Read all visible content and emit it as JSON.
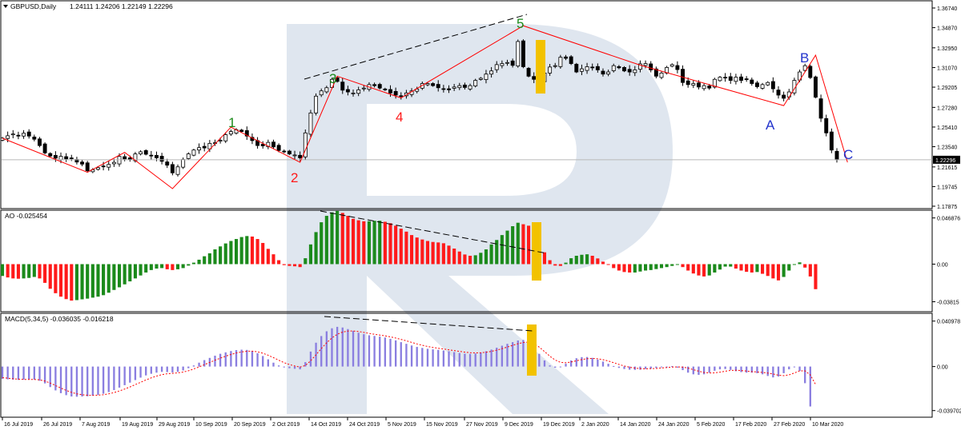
{
  "header": {
    "symbol": "GBPUSD,Daily",
    "ohlc": "1.24111 1.24206 1.22149 1.22296"
  },
  "indicators": {
    "ao_label": "AO -0.025454",
    "macd_label": "MACD(5,34,5) -0.036035 -0.016218"
  },
  "colors": {
    "bull_bar": "#ffffff",
    "bear_bar": "#000000",
    "wave_line": "#ff0000",
    "ao_up": "#1b8a1b",
    "ao_down": "#ff1a1a",
    "macd_hist": "#8a7ee0",
    "macd_signal": "#ff0000",
    "highlight": "#f2c200",
    "watermark": "#dfe6ef",
    "impulse_label": "#1a8a1a",
    "wave4_label": "#ff1a1a",
    "corrective_label": "#2233cc"
  },
  "chart_data": [
    {
      "type": "candlestick",
      "name": "price",
      "y_ticks": [
        "1.36740",
        "1.34870",
        "1.32950",
        "1.31070",
        "1.29205",
        "1.27280",
        "1.25410",
        "1.23540",
        "1.21615",
        "1.19745",
        "1.17875"
      ],
      "y_range": [
        1.17875,
        1.3674
      ],
      "current_price": "1.22296",
      "x_labels": [
        "16 Jul 2019",
        "26 Jul 2019",
        "7 Aug 2019",
        "19 Aug 2019",
        "29 Aug 2019",
        "10 Sep 2019",
        "20 Sep 2019",
        "2 Oct 2019",
        "14 Oct 2019",
        "24 Oct 2019",
        "5 Nov 2019",
        "15 Nov 2019",
        "27 Nov 2019",
        "9 Dec 2019",
        "19 Dec 2019",
        "2 Jan 2020",
        "14 Jan 2020",
        "24 Jan 2020",
        "5 Feb 2020",
        "17 Feb 2020",
        "27 Feb 2020",
        "10 Mar 2020"
      ],
      "closes": [
        1.2435,
        1.2458,
        1.2475,
        1.2455,
        1.2482,
        1.2455,
        1.2425,
        1.2365,
        1.2295,
        1.2265,
        1.2245,
        1.2262,
        1.2238,
        1.2244,
        1.2208,
        1.2188,
        1.2125,
        1.2135,
        1.2155,
        1.2165,
        1.2185,
        1.2205,
        1.2262,
        1.2238,
        1.2232,
        1.2285,
        1.2305,
        1.2282,
        1.2268,
        1.2248,
        1.2215,
        1.2178,
        1.2105,
        1.2162,
        1.2232,
        1.2285,
        1.2322,
        1.2345,
        1.2342,
        1.2385,
        1.2392,
        1.2415,
        1.2468,
        1.2498,
        1.2515,
        1.2498,
        1.2455,
        1.2412,
        1.2365,
        1.2362,
        1.2395,
        1.2352,
        1.2318,
        1.2306,
        1.2285,
        1.2275,
        1.2248,
        1.2485,
        1.2675,
        1.2835,
        1.2885,
        1.2915,
        1.2995,
        1.2975,
        1.2892,
        1.2875,
        1.2865,
        1.2895,
        1.2912,
        1.2945,
        1.2935,
        1.2912,
        1.2895,
        1.2865,
        1.2845,
        1.2832,
        1.2865,
        1.2885,
        1.2902,
        1.2955,
        1.2955,
        1.2935,
        1.2915,
        1.2902,
        1.2895,
        1.2922,
        1.2935,
        1.2918,
        1.2935,
        1.2985,
        1.3005,
        1.3045,
        1.3075,
        1.3135,
        1.3145,
        1.3155,
        1.3128,
        1.3355,
        1.3115,
        1.3025,
        1.2995,
        1.2985,
        1.3055,
        1.3112,
        1.3125,
        1.3205,
        1.3195,
        1.3145,
        1.3065,
        1.3095,
        1.3115,
        1.3108,
        1.3085,
        1.3045,
        1.3065,
        1.3125,
        1.3105,
        1.3075,
        1.3065,
        1.3085,
        1.3142,
        1.3145,
        1.3085,
        1.3025,
        1.3055,
        1.3108,
        1.3135,
        1.3088,
        1.2965,
        1.2945,
        1.2955,
        1.2922,
        1.2935,
        1.2912,
        1.2995,
        1.3015,
        1.3008,
        1.2985,
        1.3015,
        1.2985,
        1.2995,
        1.2955,
        1.2925,
        1.2945,
        1.2965,
        1.2905,
        1.2845,
        1.2815,
        1.2875,
        1.2985,
        1.3065,
        1.3125,
        1.3012,
        1.2825,
        1.2625,
        1.2485,
        1.2322,
        1.223
      ]
    },
    {
      "type": "bar",
      "name": "AO",
      "y_ticks": [
        "0.046876",
        "0.00",
        "-0.03815"
      ],
      "y_range": [
        -0.04503,
        0.05067
      ],
      "values": [
        -0.012,
        -0.0135,
        -0.0145,
        -0.0148,
        -0.0145,
        -0.014,
        -0.013,
        -0.0145,
        -0.019,
        -0.025,
        -0.0295,
        -0.033,
        -0.0355,
        -0.037,
        -0.0365,
        -0.0357,
        -0.035,
        -0.034,
        -0.033,
        -0.0315,
        -0.029,
        -0.0262,
        -0.0235,
        -0.0205,
        -0.0175,
        -0.0145,
        -0.0115,
        -0.0085,
        -0.006,
        -0.0045,
        -0.004,
        -0.0052,
        -0.006,
        -0.0052,
        -0.004,
        -0.0015,
        0.0015,
        0.0045,
        0.008,
        0.011,
        0.015,
        0.018,
        0.021,
        0.0235,
        0.0255,
        0.0275,
        0.0285,
        0.028,
        0.0255,
        0.0215,
        0.0155,
        0.01,
        0.004,
        -0.001,
        -0.0018,
        -0.0022,
        -0.003,
        0.006,
        0.02,
        0.0325,
        0.0425,
        0.049,
        0.0525,
        0.054,
        0.052,
        0.049,
        0.046,
        0.0445,
        0.0435,
        0.0435,
        0.044,
        0.044,
        0.043,
        0.0415,
        0.039,
        0.036,
        0.033,
        0.0295,
        0.027,
        0.025,
        0.0235,
        0.0225,
        0.022,
        0.0212,
        0.0188,
        0.0158,
        0.0128,
        0.0098,
        0.0085,
        0.009,
        0.0115,
        0.015,
        0.02,
        0.0245,
        0.0295,
        0.034,
        0.0385,
        0.042,
        0.0405,
        0.039,
        0.034,
        0.022,
        0.012,
        0.004,
        -0.0015,
        -0.0018,
        0.0015,
        0.006,
        0.0085,
        0.0095,
        0.01,
        0.0085,
        0.0058,
        0.0025,
        -0.0005,
        -0.004,
        -0.0065,
        -0.008,
        -0.0085,
        -0.0085,
        -0.0075,
        -0.0065,
        -0.006,
        -0.005,
        -0.004,
        -0.003,
        -0.0018,
        -0.0008,
        -0.003,
        -0.0065,
        -0.0095,
        -0.0115,
        -0.0125,
        -0.0115,
        -0.0085,
        -0.0055,
        -0.0025,
        -0.0025,
        -0.0045,
        -0.0065,
        -0.0078,
        -0.0085,
        -0.008,
        -0.0098,
        -0.012,
        -0.0145,
        -0.0165,
        -0.013,
        -0.0065,
        -0.0008,
        0.0018,
        -0.0035,
        -0.0125,
        -0.0254
      ]
    },
    {
      "type": "bar+line",
      "name": "MACD",
      "y_ticks": [
        "0.040978",
        "0.00",
        "-0.039702"
      ],
      "y_range": [
        -0.0428,
        0.0444
      ],
      "hist": [
        -0.011,
        -0.0115,
        -0.0118,
        -0.012,
        -0.0118,
        -0.0116,
        -0.0117,
        -0.0128,
        -0.0152,
        -0.0185,
        -0.0215,
        -0.024,
        -0.0258,
        -0.027,
        -0.0272,
        -0.027,
        -0.0268,
        -0.0262,
        -0.0255,
        -0.0245,
        -0.023,
        -0.0212,
        -0.019,
        -0.0168,
        -0.0145,
        -0.0122,
        -0.01,
        -0.008,
        -0.0065,
        -0.0055,
        -0.0048,
        -0.005,
        -0.0053,
        -0.0048,
        -0.0035,
        -0.0015,
        0.001,
        0.0035,
        0.0058,
        0.0078,
        0.0098,
        0.0115,
        0.0128,
        0.014,
        0.0148,
        0.0152,
        0.015,
        0.014,
        0.012,
        0.0095,
        0.0065,
        0.0035,
        0.001,
        -0.0008,
        -0.0015,
        -0.002,
        -0.0025,
        0.004,
        0.0135,
        0.0215,
        0.0275,
        0.0318,
        0.0345,
        0.0358,
        0.0352,
        0.0338,
        0.0322,
        0.0305,
        0.0292,
        0.0282,
        0.0276,
        0.027,
        0.0262,
        0.025,
        0.0236,
        0.022,
        0.0205,
        0.019,
        0.0177,
        0.0168,
        0.016,
        0.0155,
        0.015,
        0.0145,
        0.0138,
        0.013,
        0.0122,
        0.0116,
        0.0114,
        0.0118,
        0.0126,
        0.0138,
        0.0153,
        0.017,
        0.0188,
        0.0205,
        0.022,
        0.0235,
        0.024,
        0.0225,
        0.018,
        0.0115,
        0.0055,
        0.001,
        -0.001,
        -0.0005,
        0.0025,
        0.0055,
        0.0075,
        0.0085,
        0.0086,
        0.0078,
        0.0063,
        0.0045,
        0.0025,
        0.0005,
        -0.0012,
        -0.0022,
        -0.0028,
        -0.003,
        -0.0028,
        -0.0022,
        -0.0018,
        -0.0012,
        -0.0006,
        0.0,
        0.0004,
        -0.001,
        -0.0032,
        -0.0055,
        -0.007,
        -0.0075,
        -0.007,
        -0.0055,
        -0.0038,
        -0.0025,
        -0.0022,
        -0.003,
        -0.0042,
        -0.005,
        -0.0055,
        -0.0055,
        -0.006,
        -0.007,
        -0.0085,
        -0.0098,
        -0.009,
        -0.006,
        -0.0025,
        0.0,
        -0.004,
        -0.015,
        -0.036
      ],
      "signal": [
        -0.01,
        -0.0105,
        -0.011,
        -0.0114,
        -0.0116,
        -0.0116,
        -0.0116,
        -0.012,
        -0.0131,
        -0.0149,
        -0.0171,
        -0.0194,
        -0.0215,
        -0.0233,
        -0.0246,
        -0.0254,
        -0.0259,
        -0.026,
        -0.0258,
        -0.0254,
        -0.0246,
        -0.0235,
        -0.022,
        -0.0203,
        -0.0184,
        -0.0163,
        -0.0142,
        -0.0121,
        -0.0102,
        -0.0086,
        -0.0073,
        -0.0065,
        -0.0061,
        -0.0057,
        -0.005,
        -0.0038,
        -0.0022,
        -0.0003,
        0.0017,
        0.0037,
        0.0057,
        0.0076,
        0.0093,
        0.0109,
        0.0122,
        0.0132,
        0.0138,
        0.0139,
        0.0133,
        0.012,
        0.0102,
        0.008,
        0.0057,
        0.0035,
        0.0018,
        0.0005,
        -0.0005,
        0.001,
        0.0052,
        0.0106,
        0.0162,
        0.0214,
        0.0258,
        0.0291,
        0.0311,
        0.032,
        0.0321,
        0.0316,
        0.0308,
        0.0299,
        0.0291,
        0.0284,
        0.0277,
        0.0268,
        0.0257,
        0.0245,
        0.0232,
        0.0218,
        0.0204,
        0.0192,
        0.0181,
        0.0172,
        0.0165,
        0.0158,
        0.0151,
        0.0144,
        0.0137,
        0.013,
        0.0125,
        0.0123,
        0.0124,
        0.0129,
        0.0137,
        0.0148,
        0.0161,
        0.0176,
        0.0191,
        0.0206,
        0.0217,
        0.022,
        0.0207,
        0.0175,
        0.0135,
        0.0093,
        0.0059,
        0.0038,
        0.0034,
        0.0041,
        0.0052,
        0.0063,
        0.0071,
        0.0073,
        0.007,
        0.0062,
        0.005,
        0.0035,
        0.0019,
        0.0005,
        -0.0006,
        -0.0014,
        -0.0019,
        -0.002,
        -0.0019,
        -0.0017,
        -0.0013,
        -0.0009,
        -0.0005,
        -0.0003,
        -0.0005,
        -0.0014,
        -0.0028,
        -0.0042,
        -0.0053,
        -0.0058,
        -0.0057,
        -0.0051,
        -0.0042,
        -0.0035,
        -0.0033,
        -0.0036,
        -0.0041,
        -0.0046,
        -0.0049,
        -0.0053,
        -0.0059,
        -0.0067,
        -0.0078,
        -0.0082,
        -0.0075,
        -0.0058,
        -0.0039,
        -0.0039,
        -0.0076,
        -0.0162
      ]
    }
  ],
  "annotations": {
    "wave_labels": [
      "1",
      "2",
      "3",
      "4",
      "5",
      "A",
      "B",
      "C"
    ]
  }
}
